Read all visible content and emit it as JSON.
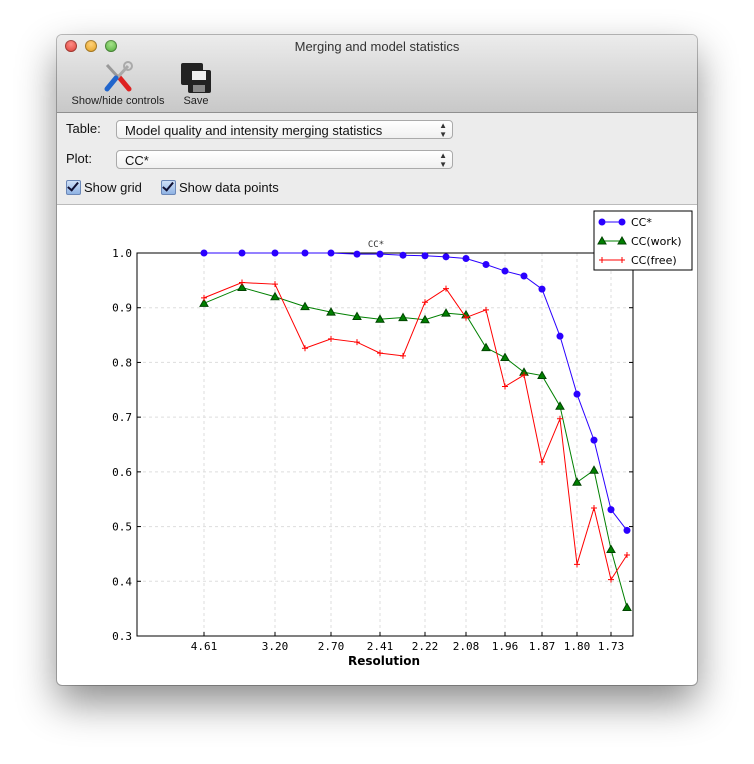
{
  "window": {
    "title": "Merging and model statistics"
  },
  "toolbar": {
    "show_hide_label": "Show/hide controls",
    "save_label": "Save",
    "show_hide_icon": "wrench-screwdriver-icon",
    "save_icon": "floppy-disk-icon"
  },
  "controls": {
    "table_label": "Table:",
    "table_value": "Model quality and intensity merging statistics",
    "plot_label": "Plot:",
    "plot_value": "CC*",
    "show_grid_label": "Show grid",
    "show_grid_checked": true,
    "show_points_label": "Show data points",
    "show_points_checked": true
  },
  "chart_data": {
    "type": "line",
    "title": "CC*",
    "xlabel": "Resolution",
    "ylabel": "",
    "ylim": [
      0.3,
      1.0
    ],
    "yticks": [
      "0.3",
      "0.4",
      "0.5",
      "0.6",
      "0.7",
      "0.8",
      "0.9",
      "1.0"
    ],
    "xtick_labels": [
      "4.61",
      "3.20",
      "2.70",
      "2.41",
      "2.22",
      "2.08",
      "1.96",
      "1.87",
      "1.80",
      "1.73"
    ],
    "grid": true,
    "legend": "top-right",
    "series": [
      {
        "name": "CC*",
        "color": "#2a00ff",
        "marker": "circle",
        "values": [
          1.0,
          1.0,
          1.0,
          1.0,
          1.0,
          0.998,
          0.998,
          0.996,
          0.995,
          0.993,
          0.99,
          0.979,
          0.967,
          0.958,
          0.934,
          0.848,
          0.742,
          0.658,
          0.531,
          0.493
        ]
      },
      {
        "name": "CC(work)",
        "color": "#008000",
        "marker": "triangle",
        "values": [
          0.908,
          0.937,
          0.92,
          0.902,
          0.892,
          0.884,
          0.879,
          0.882,
          0.878,
          0.89,
          0.887,
          0.827,
          0.809,
          0.782,
          0.776,
          0.72,
          0.581,
          0.603,
          0.458,
          0.352
        ]
      },
      {
        "name": "CC(free)",
        "color": "#ff0000",
        "marker": "plus",
        "values": [
          0.918,
          0.946,
          0.943,
          0.826,
          0.843,
          0.837,
          0.817,
          0.812,
          0.91,
          0.935,
          0.882,
          0.896,
          0.756,
          0.777,
          0.618,
          0.697,
          0.431,
          0.534,
          0.403,
          0.448
        ]
      }
    ]
  }
}
